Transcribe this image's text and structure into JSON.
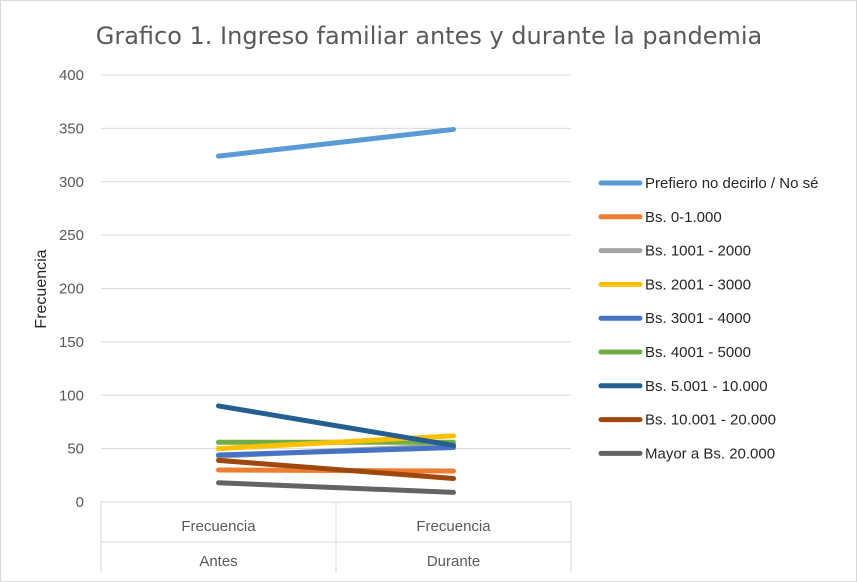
{
  "chart_data": {
    "type": "line",
    "title": "Grafico 1. Ingreso familiar antes y durante la pandemia",
    "ylabel": "Frecuencia",
    "xlabel": "",
    "ylim": [
      0,
      400
    ],
    "yticks": [
      0,
      50,
      100,
      150,
      200,
      250,
      300,
      350,
      400
    ],
    "grid": true,
    "legend_position": "right",
    "categories": [
      {
        "inner": "Frecuencia",
        "outer": "Antes"
      },
      {
        "inner": "Frecuencia",
        "outer": "Durante"
      }
    ],
    "series": [
      {
        "name": "Prefiero no decirlo / No sé",
        "color": "#5B9BD5",
        "values": [
          324,
          349
        ]
      },
      {
        "name": "Bs. 0-1.000",
        "color": "#ED7D31",
        "values": [
          30,
          29
        ]
      },
      {
        "name": "Bs. 1001 - 2000",
        "color": "#A5A5A5",
        "values": [
          43,
          53
        ]
      },
      {
        "name": "Bs. 2001 - 3000",
        "color": "#FFC000",
        "values": [
          50,
          62
        ]
      },
      {
        "name": "Bs. 3001 - 4000",
        "color": "#4472C4",
        "values": [
          44,
          51
        ]
      },
      {
        "name": "Bs. 4001 - 5000",
        "color": "#70AD47",
        "values": [
          56,
          56
        ]
      },
      {
        "name": "Bs. 5.001 - 10.000",
        "color": "#255E91",
        "values": [
          90,
          53
        ]
      },
      {
        "name": "Bs. 10.001 - 20.000",
        "color": "#9E480E",
        "values": [
          39,
          22
        ]
      },
      {
        "name": "Mayor a Bs. 20.000",
        "color": "#636363",
        "values": [
          18,
          9
        ]
      }
    ]
  }
}
